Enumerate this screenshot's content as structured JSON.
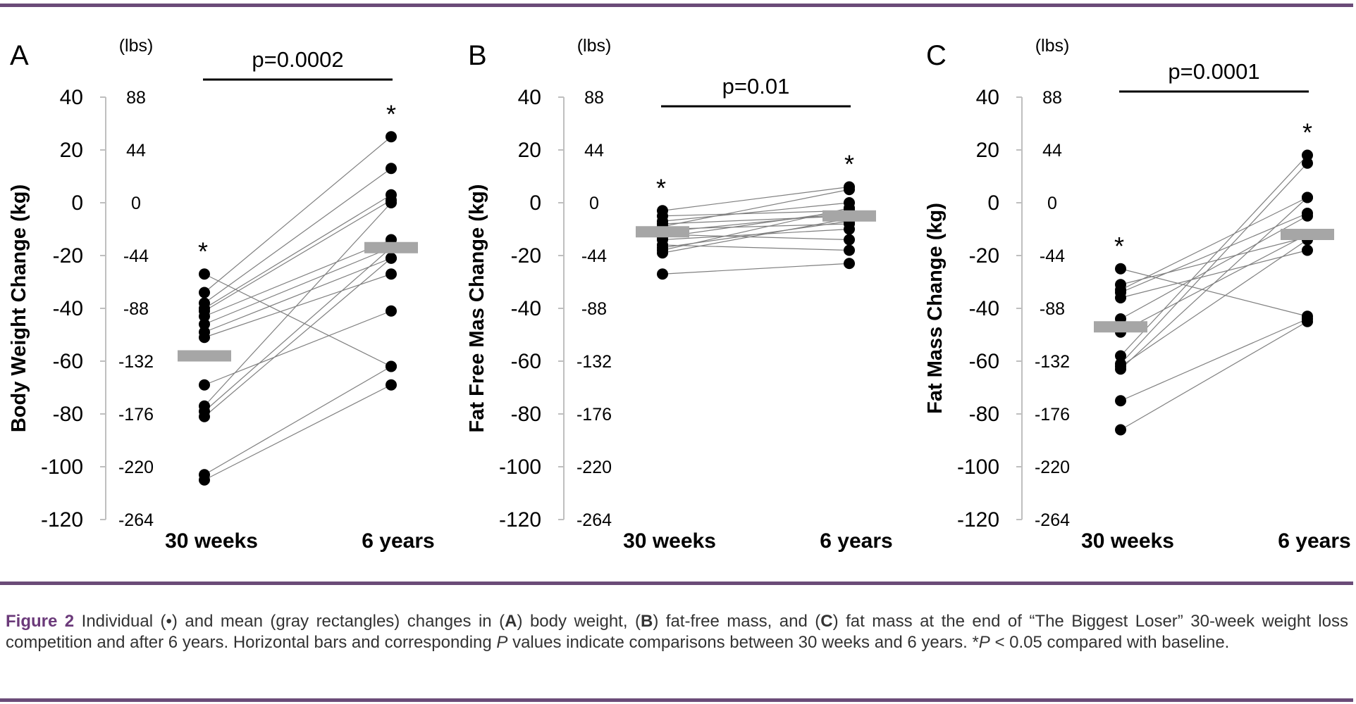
{
  "caption": {
    "label": "Figure 2",
    "text_1": " Individual (•) and mean (gray rectangles) changes in (",
    "a": "A",
    "text_2": ") body weight, (",
    "b": "B",
    "text_3": ") fat-free mass, and (",
    "c": "C",
    "text_4": ") fat mass at the end of “The Biggest Loser” 30-week weight loss competition and after 6 years. Horizontal bars and corresponding ",
    "p": "P",
    "text_5": " values indicate comparisons between 30 weeks and 6 years. *",
    "p2": "P",
    "text_6": " < 0.05 compared with baseline."
  },
  "colors": {
    "rule": "#6b4b78",
    "mean": "#a6a6a6",
    "point": "#000000",
    "line": "#7f7f7f",
    "axis": "#bfbfbf"
  },
  "chart_data": [
    {
      "type": "scatter",
      "panel": "A",
      "ylabel": "Body Weight Change (kg)",
      "secondary_axis_title": "(lbs)",
      "categories": [
        "30 weeks",
        "6 years"
      ],
      "ylim": [
        -120,
        40
      ],
      "yticks": [
        40,
        20,
        0,
        -20,
        -40,
        -60,
        -80,
        -100,
        -120
      ],
      "lbs_ticks": [
        "88",
        "44",
        "0",
        "-44",
        "-88",
        "-132",
        "-176",
        "-220",
        "-264"
      ],
      "comparison": "p=0.0002",
      "significance": [
        "*",
        "*"
      ],
      "means": [
        -58,
        -17
      ],
      "pairs": [
        [
          -27,
          -62
        ],
        [
          -34,
          25
        ],
        [
          -38,
          13
        ],
        [
          -40,
          3
        ],
        [
          -41,
          1
        ],
        [
          -43,
          -14
        ],
        [
          -46,
          -17
        ],
        [
          -49,
          -21
        ],
        [
          -51,
          -27
        ],
        [
          -69,
          -41
        ],
        [
          -77,
          0
        ],
        [
          -79,
          -17
        ],
        [
          -81,
          -21
        ],
        [
          -103,
          -62
        ],
        [
          -105,
          -69
        ]
      ]
    },
    {
      "type": "scatter",
      "panel": "B",
      "ylabel": "Fat Free Mas  Change (kg)",
      "secondary_axis_title": "(lbs)",
      "categories": [
        "30 weeks",
        "6 years"
      ],
      "ylim": [
        -120,
        40
      ],
      "yticks": [
        40,
        20,
        0,
        -20,
        -40,
        -60,
        -80,
        -100,
        -120
      ],
      "lbs_ticks": [
        "88",
        "44",
        "0",
        "-44",
        "-88",
        "-132",
        "-176",
        "-220",
        "-264"
      ],
      "comparison": "p=0.01",
      "significance": [
        "*",
        "*"
      ],
      "means": [
        -11,
        -5
      ],
      "pairs": [
        [
          -3,
          6
        ],
        [
          -5,
          -3
        ],
        [
          -7,
          0
        ],
        [
          -8,
          -5
        ],
        [
          -9,
          5
        ],
        [
          -10,
          -8
        ],
        [
          -11,
          -4
        ],
        [
          -12,
          -14
        ],
        [
          -13,
          -3
        ],
        [
          -14,
          -10
        ],
        [
          -16,
          -18
        ],
        [
          -17,
          -7
        ],
        [
          -18,
          -2
        ],
        [
          -19,
          -6
        ],
        [
          -27,
          -23
        ]
      ]
    },
    {
      "type": "scatter",
      "panel": "C",
      "ylabel": "Fat Mass Change (kg)",
      "secondary_axis_title": "(lbs)",
      "categories": [
        "30 weeks",
        "6 years"
      ],
      "ylim": [
        -120,
        40
      ],
      "yticks": [
        40,
        20,
        0,
        -20,
        -40,
        -60,
        -80,
        -100,
        -120
      ],
      "lbs_ticks": [
        "88",
        "44",
        "0",
        "-44",
        "-88",
        "-132",
        "-176",
        "-220",
        "-264"
      ],
      "comparison": "p=0.0001",
      "significance": [
        "*",
        "*"
      ],
      "means": [
        -47,
        -12
      ],
      "pairs": [
        [
          -25,
          -43
        ],
        [
          -31,
          -13
        ],
        [
          -33,
          2
        ],
        [
          -34,
          -4
        ],
        [
          -36,
          -18
        ],
        [
          -44,
          -5
        ],
        [
          -49,
          -12
        ],
        [
          -58,
          18
        ],
        [
          -61,
          15
        ],
        [
          -62,
          -14
        ],
        [
          -63,
          2
        ],
        [
          -75,
          -44
        ],
        [
          -86,
          -45
        ]
      ]
    }
  ]
}
